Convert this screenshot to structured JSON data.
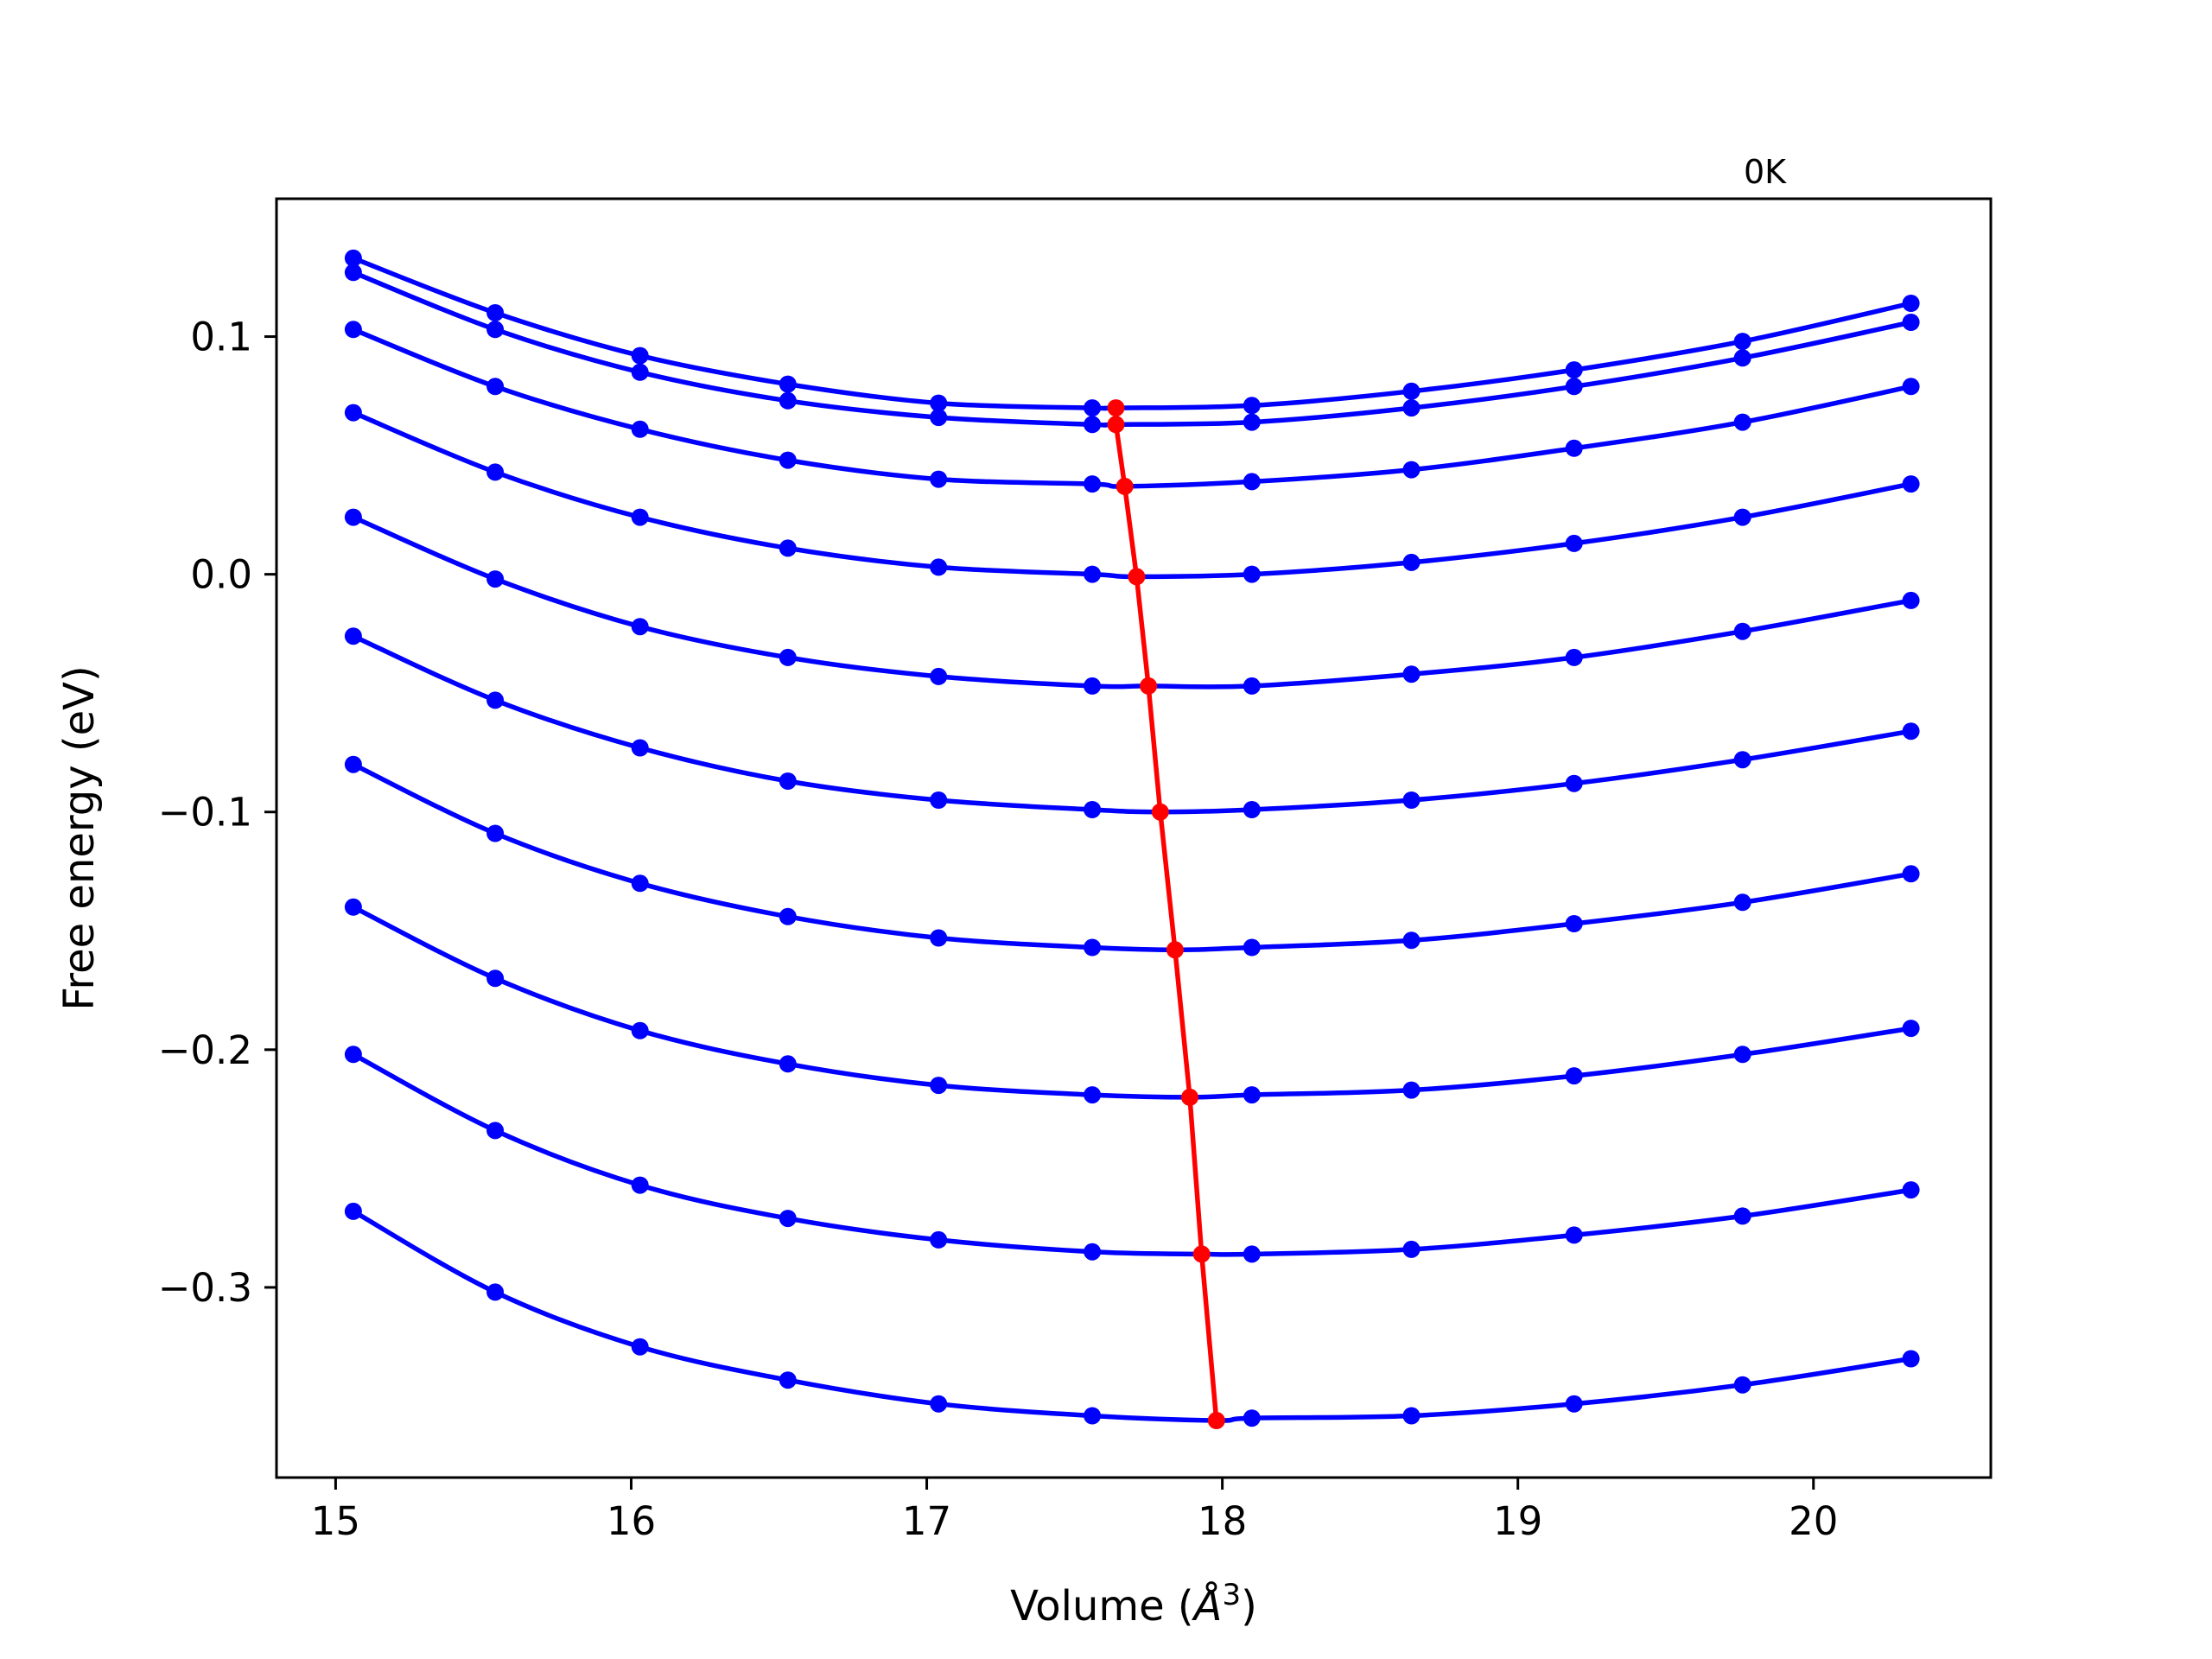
{
  "chart_data": {
    "type": "line",
    "title": "",
    "annotation": "0K",
    "xlabel": "Volume ($\\AA^3$)",
    "xlabel_main": "Volume (",
    "xlabel_unit": "Å",
    "xlabel_exp": "3",
    "xlabel_close": ")",
    "ylabel": "Free energy (eV)",
    "xlim": [
      14.8,
      20.6
    ],
    "ylim": [
      -0.38,
      0.158
    ],
    "grid": false,
    "xticks": [
      15,
      16,
      17,
      18,
      19,
      20
    ],
    "xtick_labels": [
      "15",
      "16",
      "17",
      "18",
      "19",
      "20"
    ],
    "yticks": [
      0.1,
      0.0,
      -0.1,
      -0.2,
      -0.3
    ],
    "ytick_labels": [
      "0.1",
      "0.0",
      "−0.1",
      "−0.2",
      "−0.3"
    ],
    "x": [
      15.06,
      15.54,
      16.03,
      16.53,
      17.04,
      17.56,
      18.1,
      18.64,
      19.19,
      19.76,
      20.33
    ],
    "series": [
      {
        "color": "#0000ff",
        "values": [
          0.133,
          0.11,
          0.092,
          0.08,
          0.072,
          0.07,
          0.071,
          0.077,
          0.086,
          0.098,
          0.114
        ],
        "min": [
          17.64,
          0.07
        ]
      },
      {
        "color": "#0000ff",
        "values": [
          0.127,
          0.103,
          0.085,
          0.073,
          0.066,
          0.063,
          0.064,
          0.07,
          0.079,
          0.091,
          0.106
        ],
        "min": [
          17.64,
          0.063
        ]
      },
      {
        "color": "#0000ff",
        "values": [
          0.103,
          0.079,
          0.061,
          0.048,
          0.04,
          0.038,
          0.039,
          0.044,
          0.053,
          0.064,
          0.079
        ],
        "min": [
          17.67,
          0.037
        ]
      },
      {
        "color": "#0000ff",
        "values": [
          0.068,
          0.043,
          0.024,
          0.011,
          0.003,
          0.0,
          0.0,
          0.005,
          0.013,
          0.024,
          0.038
        ],
        "min": [
          17.71,
          -0.001
        ]
      },
      {
        "color": "#0000ff",
        "values": [
          0.024,
          -0.002,
          -0.022,
          -0.035,
          -0.043,
          -0.047,
          -0.047,
          -0.042,
          -0.035,
          -0.024,
          -0.011
        ],
        "min": [
          17.75,
          -0.047
        ]
      },
      {
        "color": "#0000ff",
        "values": [
          -0.026,
          -0.053,
          -0.073,
          -0.087,
          -0.095,
          -0.099,
          -0.099,
          -0.095,
          -0.088,
          -0.078,
          -0.066
        ],
        "min": [
          17.79,
          -0.1
        ]
      },
      {
        "color": "#0000ff",
        "values": [
          -0.08,
          -0.109,
          -0.13,
          -0.144,
          -0.153,
          -0.157,
          -0.157,
          -0.154,
          -0.147,
          -0.138,
          -0.126
        ],
        "min": [
          17.84,
          -0.158
        ]
      },
      {
        "color": "#0000ff",
        "values": [
          -0.14,
          -0.17,
          -0.192,
          -0.206,
          -0.215,
          -0.219,
          -0.219,
          -0.217,
          -0.211,
          -0.202,
          -0.191
        ],
        "min": [
          17.89,
          -0.22
        ]
      },
      {
        "color": "#0000ff",
        "values": [
          -0.202,
          -0.234,
          -0.257,
          -0.271,
          -0.28,
          -0.285,
          -0.286,
          -0.284,
          -0.278,
          -0.27,
          -0.259
        ],
        "min": [
          17.93,
          -0.286
        ]
      },
      {
        "color": "#0000ff",
        "values": [
          -0.268,
          -0.302,
          -0.325,
          -0.339,
          -0.349,
          -0.354,
          -0.355,
          -0.354,
          -0.349,
          -0.341,
          -0.33
        ],
        "min": [
          17.98,
          -0.356
        ]
      }
    ],
    "minimum_curve": {
      "color": "#ff0000",
      "x": [
        17.64,
        17.64,
        17.67,
        17.71,
        17.75,
        17.79,
        17.84,
        17.89,
        17.93,
        17.98
      ],
      "y": [
        0.07,
        0.063,
        0.037,
        -0.001,
        -0.047,
        -0.1,
        -0.158,
        -0.22,
        -0.286,
        -0.356
      ]
    }
  }
}
